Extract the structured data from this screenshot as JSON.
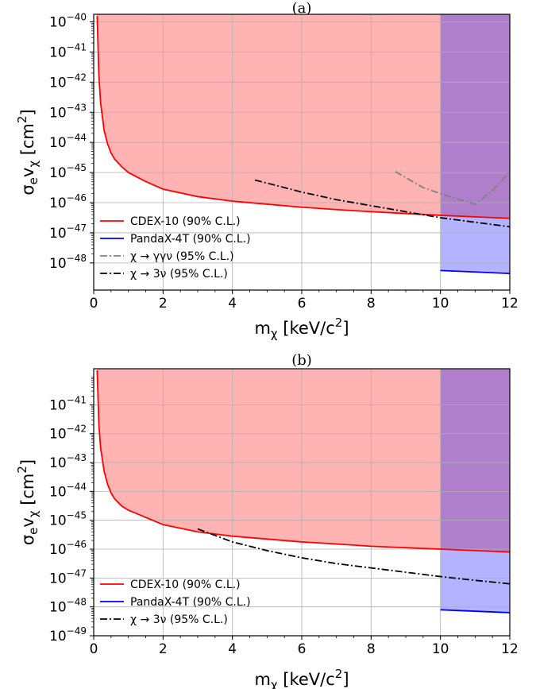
{
  "chart_data": [
    {
      "panel": "(a)",
      "type": "line",
      "xlabel_main": "m",
      "xlabel_sub": "χ",
      "xlabel_unit": " [keV/c",
      "xlabel_sup": "2",
      "xlabel_end": "]",
      "ylabel": "σ",
      "xlim": [
        0,
        12
      ],
      "ylim_log10": [
        -48.9,
        -39.75
      ],
      "xticks": [
        0,
        2,
        4,
        6,
        8,
        10,
        12
      ],
      "xtick_labels": [
        "0",
        "2",
        "4",
        "6",
        "8",
        "10",
        "12"
      ],
      "yticks_log10": [
        -48,
        -47,
        -46,
        -45,
        -44,
        -43,
        -42,
        -41,
        -40
      ],
      "ytick_exponents": [
        "−48",
        "−47",
        "−46",
        "−45",
        "−44",
        "−43",
        "−42",
        "−41",
        "−40"
      ],
      "grid": true,
      "legend_placement": "lower-left",
      "series": [
        {
          "name": "CDEX-10   (90% C.L.)",
          "color": "#ff0000",
          "fill": "#ffb3b3",
          "style": "solid",
          "x": [
            0.1,
            0.15,
            0.2,
            0.3,
            0.4,
            0.5,
            0.6,
            0.8,
            1.0,
            1.5,
            2.0,
            3.0,
            4.0,
            5.0,
            6.0,
            7.0,
            8.0,
            9.0,
            10.0,
            11.0,
            12.0
          ],
          "log10_y": [
            -39.8,
            -41.8,
            -42.7,
            -43.6,
            -44.05,
            -44.35,
            -44.55,
            -44.8,
            -45.0,
            -45.3,
            -45.55,
            -45.8,
            -45.95,
            -46.05,
            -46.15,
            -46.23,
            -46.3,
            -46.36,
            -46.42,
            -46.47,
            -46.52
          ]
        },
        {
          "name": "PandaX-4T   (90% C.L.)",
          "color": "#0000ff",
          "fill": "#b3b3ff",
          "style": "solid",
          "x": [
            10.0,
            12.0
          ],
          "log10_y": [
            -48.25,
            -48.35
          ]
        },
        {
          "name": "χ → γγν  (95% C.L.)",
          "color": "#808080",
          "style": "dashdot",
          "x": [
            8.7,
            9.5,
            10.0,
            10.5,
            11.0,
            11.5,
            12.0
          ],
          "log10_y": [
            -44.97,
            -45.5,
            -45.7,
            -45.88,
            -46.05,
            -45.6,
            -44.97
          ]
        },
        {
          "name": "χ → 3ν  (95% C.L.)",
          "color": "#000000",
          "style": "dashdot",
          "x": [
            4.65,
            5.0,
            6.0,
            7.0,
            8.0,
            9.0,
            10.0,
            11.0,
            12.0
          ],
          "log10_y": [
            -45.25,
            -45.35,
            -45.65,
            -45.9,
            -46.1,
            -46.3,
            -46.5,
            -46.65,
            -46.8
          ]
        }
      ]
    },
    {
      "panel": "(b)",
      "type": "line",
      "xlabel_main": "m",
      "xlabel_sub": "χ",
      "xlabel_unit": " [keV/c",
      "xlabel_sup": "2",
      "xlabel_end": "]",
      "ylabel": "σ",
      "xlim": [
        0,
        12
      ],
      "ylim_log10": [
        -49,
        -39.75
      ],
      "xticks": [
        0,
        2,
        4,
        6,
        8,
        10,
        12
      ],
      "xtick_labels": [
        "0",
        "2",
        "4",
        "6",
        "8",
        "10",
        "12"
      ],
      "yticks_log10": [
        -49,
        -48,
        -47,
        -46,
        -45,
        -44,
        -43,
        -42,
        -41
      ],
      "ytick_exponents": [
        "−49",
        "−48",
        "−47",
        "−46",
        "−45",
        "−44",
        "−43",
        "−42",
        "−41"
      ],
      "grid": true,
      "legend_placement": "lower-left",
      "series": [
        {
          "name": "CDEX-10   (90% C.L.)",
          "color": "#ff0000",
          "fill": "#ffb3b3",
          "style": "solid",
          "x": [
            0.1,
            0.15,
            0.2,
            0.3,
            0.4,
            0.5,
            0.6,
            0.8,
            1.0,
            1.5,
            2.0,
            3.0,
            4.0,
            5.0,
            6.0,
            7.0,
            8.0,
            9.0,
            10.0,
            11.0,
            12.0
          ],
          "log10_y": [
            -39.8,
            -41.7,
            -42.5,
            -43.3,
            -43.75,
            -44.05,
            -44.25,
            -44.5,
            -44.65,
            -44.9,
            -45.15,
            -45.4,
            -45.55,
            -45.65,
            -45.75,
            -45.82,
            -45.9,
            -45.95,
            -46.0,
            -46.05,
            -46.1
          ]
        },
        {
          "name": "PandaX-4T   (90% C.L.)",
          "color": "#0000ff",
          "fill": "#b3b3ff",
          "style": "solid",
          "x": [
            10.0,
            12.0
          ],
          "log10_y": [
            -48.1,
            -48.2
          ]
        },
        {
          "name": "χ → 3ν  (95% C.L.)",
          "color": "#000000",
          "style": "dashdot",
          "x": [
            3.0,
            4.0,
            5.0,
            6.0,
            7.0,
            8.0,
            9.0,
            10.0,
            11.0,
            12.0
          ],
          "log10_y": [
            -45.3,
            -45.75,
            -46.05,
            -46.3,
            -46.5,
            -46.65,
            -46.8,
            -46.95,
            -47.08,
            -47.2
          ]
        }
      ]
    }
  ]
}
